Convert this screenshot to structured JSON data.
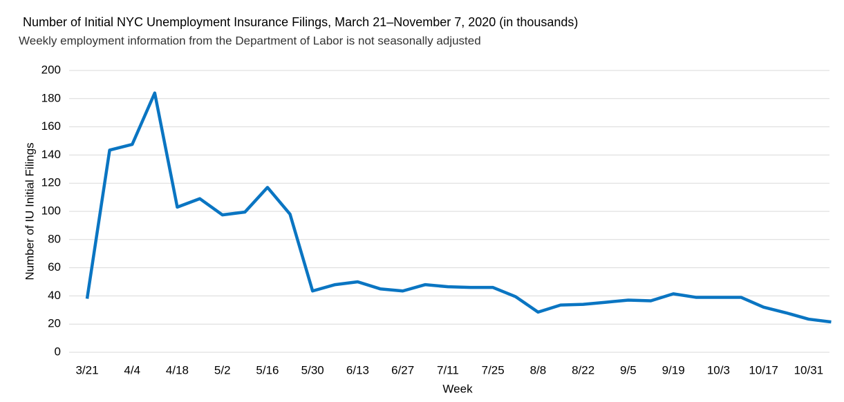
{
  "chart_data": {
    "type": "line",
    "title": "Number of Initial NYC Unemployment Insurance Filings, March 21–November 7, 2020 (in thousands)",
    "subtitle": "Weekly employment information from the Department of Labor is not seasonally adjusted",
    "x_label": "Week",
    "y_label": "Number of IU Initial Filings",
    "categories": [
      "3/21",
      null,
      "4/4",
      null,
      "4/18",
      null,
      "5/2",
      null,
      "5/16",
      null,
      "5/30",
      null,
      "6/13",
      null,
      "6/27",
      null,
      "7/11",
      null,
      "7/25",
      null,
      "8/8",
      null,
      "8/22",
      null,
      "9/5",
      null,
      "9/19",
      null,
      "10/3",
      null,
      "10/17",
      null,
      "10/31",
      null
    ],
    "series": [
      {
        "name": "Initial filings",
        "color": "#0a75c2",
        "values": [
          38,
          143.5,
          147.5,
          184,
          103,
          109,
          97.5,
          99.5,
          117,
          98,
          43.5,
          48,
          50,
          45,
          43.5,
          48,
          46.5,
          46,
          46,
          39.5,
          28.5,
          33.5,
          34,
          35.5,
          37,
          36.5,
          41.5,
          39,
          39,
          39,
          32,
          28,
          23.5,
          21.5
        ]
      }
    ],
    "ylim": [
      0,
      200
    ],
    "yticks": [
      0,
      20,
      40,
      60,
      80,
      100,
      120,
      140,
      160,
      180,
      200
    ],
    "grid": true
  }
}
